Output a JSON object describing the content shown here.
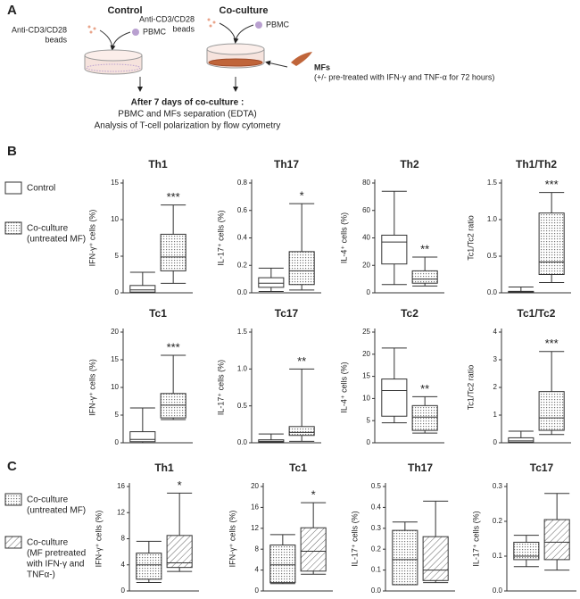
{
  "panel_a": {
    "label": "A",
    "control": "Control",
    "coculture": "Co-culture",
    "beads_control": [
      "Anti-CD3/CD28",
      "beads"
    ],
    "beads_coculture": [
      "Anti-CD3/CD28",
      "beads"
    ],
    "pbmc_control": "PBMC",
    "pbmc_coculture": "PBMC",
    "mfs": "MFs",
    "mfs_note": "(+/- pre-treated with IFN-γ and TNF-α for 72 hours)",
    "after": "After 7 days of co-culture :",
    "separation": "PBMC and MFs separation (EDTA)",
    "analysis": "Analysis of T-cell polarization by flow cytometry"
  },
  "panel_b": {
    "label": "B",
    "legend": [
      [
        "Control"
      ],
      [
        "Co-culture",
        "(untreated MF)"
      ]
    ]
  },
  "panel_c": {
    "label": "C",
    "legend": [
      [
        "Co-culture",
        "(untreated MF)"
      ],
      [
        "Co-culture",
        "(MF pretreated",
        "with IFN-γ and",
        "TNFα-)"
      ]
    ]
  },
  "chart_data": [
    {
      "type": "box",
      "title": "Th1",
      "ylabel": "IFN-γ⁺ cells (%)",
      "ylim": [
        0,
        15
      ],
      "yticks": [
        0,
        5,
        10,
        15
      ],
      "annotation": "***",
      "boxes": [
        {
          "pattern": "none",
          "min": 0,
          "q1": 0.1,
          "median": 0.4,
          "q3": 1.0,
          "max": 2.8
        },
        {
          "pattern": "dots",
          "min": 1.3,
          "q1": 3,
          "median": 4.9,
          "q3": 8,
          "max": 12
        }
      ]
    },
    {
      "type": "box",
      "title": "Th17",
      "ylabel": "IL-17⁺ cells (%)",
      "ylim": [
        0,
        0.8
      ],
      "yticks": [
        {
          "value": 0,
          "label": "0.0"
        },
        0.2,
        0.4,
        0.6,
        0.8
      ],
      "annotation": "*",
      "boxes": [
        {
          "pattern": "none",
          "min": 0.01,
          "q1": 0.04,
          "median": 0.07,
          "q3": 0.11,
          "max": 0.18
        },
        {
          "pattern": "dots",
          "min": 0.02,
          "q1": 0.06,
          "median": 0.16,
          "q3": 0.3,
          "max": 0.65
        }
      ]
    },
    {
      "type": "box",
      "title": "Th2",
      "ylabel": "IL-4⁺ cells (%)",
      "ylim": [
        0,
        80
      ],
      "yticks": [
        0,
        20,
        40,
        60,
        80
      ],
      "annotation": "**",
      "boxes": [
        {
          "pattern": "none",
          "min": 6,
          "q1": 21,
          "median": 37,
          "q3": 42,
          "max": 74
        },
        {
          "pattern": "dots",
          "min": 5,
          "q1": 7,
          "median": 10,
          "q3": 16,
          "max": 26
        }
      ]
    },
    {
      "type": "box",
      "title": "Th1/Th2",
      "ylabel": "Tc1/Tc2 ratio",
      "ylim": [
        0,
        1.5
      ],
      "yticks": [
        {
          "value": 0,
          "label": "0.0"
        },
        0.5,
        {
          "value": 1,
          "label": "1.0"
        },
        1.5
      ],
      "annotation": "***",
      "boxes": [
        {
          "pattern": "none",
          "min": 0,
          "q1": 0.01,
          "median": 0.01,
          "q3": 0.02,
          "max": 0.08
        },
        {
          "pattern": "dots",
          "min": 0.14,
          "q1": 0.25,
          "median": 0.42,
          "q3": 1.09,
          "max": 1.37
        }
      ]
    },
    {
      "type": "box",
      "title": "Tc1",
      "ylabel": "IFN-γ⁺ cells (%)",
      "ylim": [
        0,
        20
      ],
      "yticks": [
        0,
        5,
        10,
        15,
        20
      ],
      "annotation": "***",
      "boxes": [
        {
          "pattern": "none",
          "min": 0,
          "q1": 0.2,
          "median": 0.6,
          "q3": 2,
          "max": 6.3
        },
        {
          "pattern": "dots",
          "min": 4.2,
          "q1": 4.5,
          "median": 6.8,
          "q3": 8.9,
          "max": 15.8
        }
      ]
    },
    {
      "type": "box",
      "title": "Tc17",
      "ylabel": "IL-17⁺ cells (%)",
      "ylim": [
        0,
        1.5
      ],
      "yticks": [
        {
          "value": 0,
          "label": "0.0"
        },
        0.5,
        {
          "value": 1,
          "label": "1.0"
        },
        1.5
      ],
      "annotation": "**",
      "boxes": [
        {
          "pattern": "none",
          "min": 0,
          "q1": 0.01,
          "median": 0.02,
          "q3": 0.04,
          "max": 0.12
        },
        {
          "pattern": "dots",
          "min": 0.02,
          "q1": 0.1,
          "median": 0.14,
          "q3": 0.22,
          "max": 1.0
        }
      ]
    },
    {
      "type": "box",
      "title": "Tc2",
      "ylabel": "IL-4⁺ cells (%)",
      "ylim": [
        0,
        25
      ],
      "yticks": [
        0,
        5,
        10,
        15,
        20,
        25
      ],
      "annotation": "**",
      "boxes": [
        {
          "pattern": "none",
          "min": 4.5,
          "q1": 6,
          "median": 11.8,
          "q3": 14.4,
          "max": 21.4
        },
        {
          "pattern": "dots",
          "min": 2.2,
          "q1": 2.8,
          "median": 5.8,
          "q3": 8.4,
          "max": 10.4
        }
      ]
    },
    {
      "type": "box",
      "title": "Tc1/Tc2",
      "ylabel": "Tc1/Tc2 ratio",
      "ylim": [
        0,
        4
      ],
      "yticks": [
        0,
        1,
        2,
        3,
        4
      ],
      "annotation": "***",
      "boxes": [
        {
          "pattern": "none",
          "min": 0,
          "q1": 0.02,
          "median": 0.07,
          "q3": 0.18,
          "max": 0.42
        },
        {
          "pattern": "dots",
          "min": 0.3,
          "q1": 0.45,
          "median": 0.9,
          "q3": 1.85,
          "max": 3.3
        }
      ]
    },
    {
      "type": "box",
      "title": "Th1",
      "ylabel": "IFN-γ⁺ cells (%)",
      "ylim": [
        0,
        16
      ],
      "yticks": [
        0,
        4,
        8,
        12,
        16
      ],
      "annotation": "*",
      "boxes": [
        {
          "pattern": "dots",
          "min": 1.3,
          "q1": 1.8,
          "median": 4,
          "q3": 5.8,
          "max": 7.6
        },
        {
          "pattern": "hatch",
          "min": 3,
          "q1": 3.6,
          "median": 4.3,
          "q3": 8.5,
          "max": 15
        }
      ]
    },
    {
      "type": "box",
      "title": "Tc1",
      "ylabel": "IFN-γ⁺ cells (%)",
      "ylim": [
        0,
        20
      ],
      "yticks": [
        0,
        4,
        8,
        12,
        16,
        20
      ],
      "annotation": "*",
      "boxes": [
        {
          "pattern": "dots",
          "min": 1.4,
          "q1": 1.6,
          "median": 5,
          "q3": 8.8,
          "max": 10.8
        },
        {
          "pattern": "hatch",
          "min": 3.2,
          "q1": 3.8,
          "median": 7.6,
          "q3": 12.1,
          "max": 16.9
        }
      ]
    },
    {
      "type": "box",
      "title": "Th17",
      "ylabel": "IL-17⁺ cells (%)",
      "ylim": [
        0,
        0.5
      ],
      "yticks": [
        {
          "value": 0,
          "label": "0.0"
        },
        0.1,
        0.2,
        0.3,
        0.4,
        0.5
      ],
      "boxes": [
        {
          "pattern": "dots",
          "min": 0.03,
          "q1": 0.03,
          "median": 0.15,
          "q3": 0.29,
          "max": 0.33
        },
        {
          "pattern": "hatch",
          "min": 0.04,
          "q1": 0.05,
          "median": 0.1,
          "q3": 0.26,
          "max": 0.43
        }
      ]
    },
    {
      "type": "box",
      "title": "Tc17",
      "ylabel": "IL-17⁺ cells (%)",
      "ylim": [
        0,
        0.3
      ],
      "yticks": [
        {
          "value": 0,
          "label": "0.0"
        },
        0.1,
        0.2,
        0.3
      ],
      "boxes": [
        {
          "pattern": "dots",
          "min": 0.07,
          "q1": 0.09,
          "median": 0.1,
          "q3": 0.14,
          "max": 0.16
        },
        {
          "pattern": "hatch",
          "min": 0.06,
          "q1": 0.09,
          "median": 0.14,
          "q3": 0.205,
          "max": 0.28
        }
      ]
    }
  ]
}
